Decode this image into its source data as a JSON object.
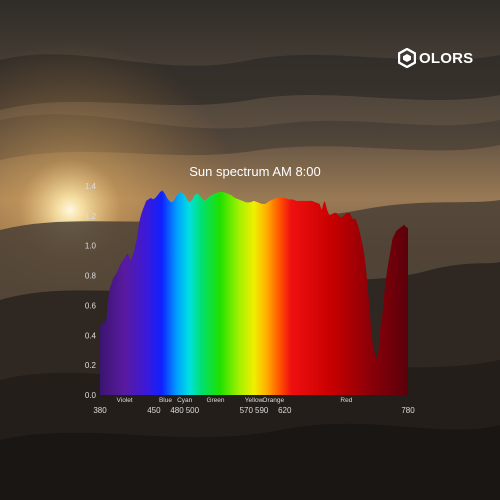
{
  "brand": {
    "name": "OLORS",
    "logo_icon": "colors-hexagon-icon"
  },
  "colors": {
    "sky_top": "#3a3631",
    "sky_glow": "#c89550",
    "sun": "#fff6d8",
    "mountains": "#2b2722",
    "axis": "#8a8a8a"
  },
  "chart_data": {
    "type": "area",
    "title": "Sun spectrum AM 8:00",
    "xlabel": "",
    "ylabel": "",
    "xlim": [
      380,
      780
    ],
    "ylim": [
      0,
      1.4
    ],
    "yticks": [
      "0.0",
      "0.2",
      "0.4",
      "0.6",
      "0.8",
      "1.0",
      "1.2",
      "1.4"
    ],
    "xticks": [
      {
        "value": 380,
        "label": "380"
      },
      {
        "value": 450,
        "label": "450"
      },
      {
        "value": 480,
        "label": "480"
      },
      {
        "value": 500,
        "label": "500"
      },
      {
        "value": 570,
        "label": "570"
      },
      {
        "value": 590,
        "label": "590"
      },
      {
        "value": 620,
        "label": "620"
      },
      {
        "value": 780,
        "label": "780"
      }
    ],
    "color_bands": [
      {
        "name": "Violet",
        "at": 412
      },
      {
        "name": "Blue",
        "at": 465
      },
      {
        "name": "Cyan",
        "at": 490
      },
      {
        "name": "Green",
        "at": 530
      },
      {
        "name": "Yellow",
        "at": 580
      },
      {
        "name": "Orange",
        "at": 605
      },
      {
        "name": "Red",
        "at": 700
      }
    ],
    "x": [
      380,
      382,
      385,
      388,
      392,
      397,
      402,
      407,
      412,
      416,
      420,
      424,
      428,
      431,
      434,
      437,
      440,
      443,
      446,
      449,
      452,
      455,
      458,
      461,
      464,
      467,
      470,
      473,
      476,
      479,
      482,
      485,
      488,
      491,
      494,
      497,
      500,
      503,
      506,
      509,
      512,
      516,
      520,
      525,
      530,
      535,
      540,
      545,
      550,
      555,
      560,
      565,
      570,
      575,
      580,
      585,
      590,
      595,
      600,
      605,
      610,
      615,
      620,
      625,
      630,
      635,
      640,
      645,
      650,
      655,
      660,
      665,
      668,
      670,
      672,
      675,
      678,
      681,
      684,
      687,
      690,
      693,
      696,
      700,
      704,
      708,
      712,
      716,
      720,
      723,
      726,
      729,
      732,
      735,
      738,
      741,
      744,
      747,
      750,
      753,
      756,
      760,
      765,
      770,
      775,
      778,
      780
    ],
    "values": [
      0.46,
      0.47,
      0.48,
      0.5,
      0.7,
      0.78,
      0.82,
      0.88,
      0.92,
      0.95,
      0.9,
      0.96,
      1.05,
      1.16,
      1.22,
      1.26,
      1.3,
      1.31,
      1.32,
      1.31,
      1.32,
      1.34,
      1.36,
      1.37,
      1.35,
      1.32,
      1.3,
      1.29,
      1.3,
      1.33,
      1.35,
      1.36,
      1.35,
      1.33,
      1.3,
      1.29,
      1.31,
      1.34,
      1.35,
      1.34,
      1.32,
      1.3,
      1.32,
      1.34,
      1.35,
      1.36,
      1.36,
      1.35,
      1.34,
      1.32,
      1.31,
      1.3,
      1.29,
      1.29,
      1.3,
      1.29,
      1.28,
      1.28,
      1.3,
      1.31,
      1.32,
      1.32,
      1.32,
      1.31,
      1.31,
      1.3,
      1.3,
      1.3,
      1.3,
      1.3,
      1.29,
      1.28,
      1.24,
      1.28,
      1.3,
      1.24,
      1.2,
      1.21,
      1.22,
      1.22,
      1.2,
      1.19,
      1.2,
      1.22,
      1.22,
      1.18,
      1.18,
      1.12,
      1.03,
      0.95,
      0.82,
      0.64,
      0.45,
      0.32,
      0.25,
      0.26,
      0.45,
      0.55,
      0.72,
      0.84,
      0.93,
      1.05,
      1.1,
      1.12,
      1.14,
      1.12,
      1.12
    ]
  }
}
